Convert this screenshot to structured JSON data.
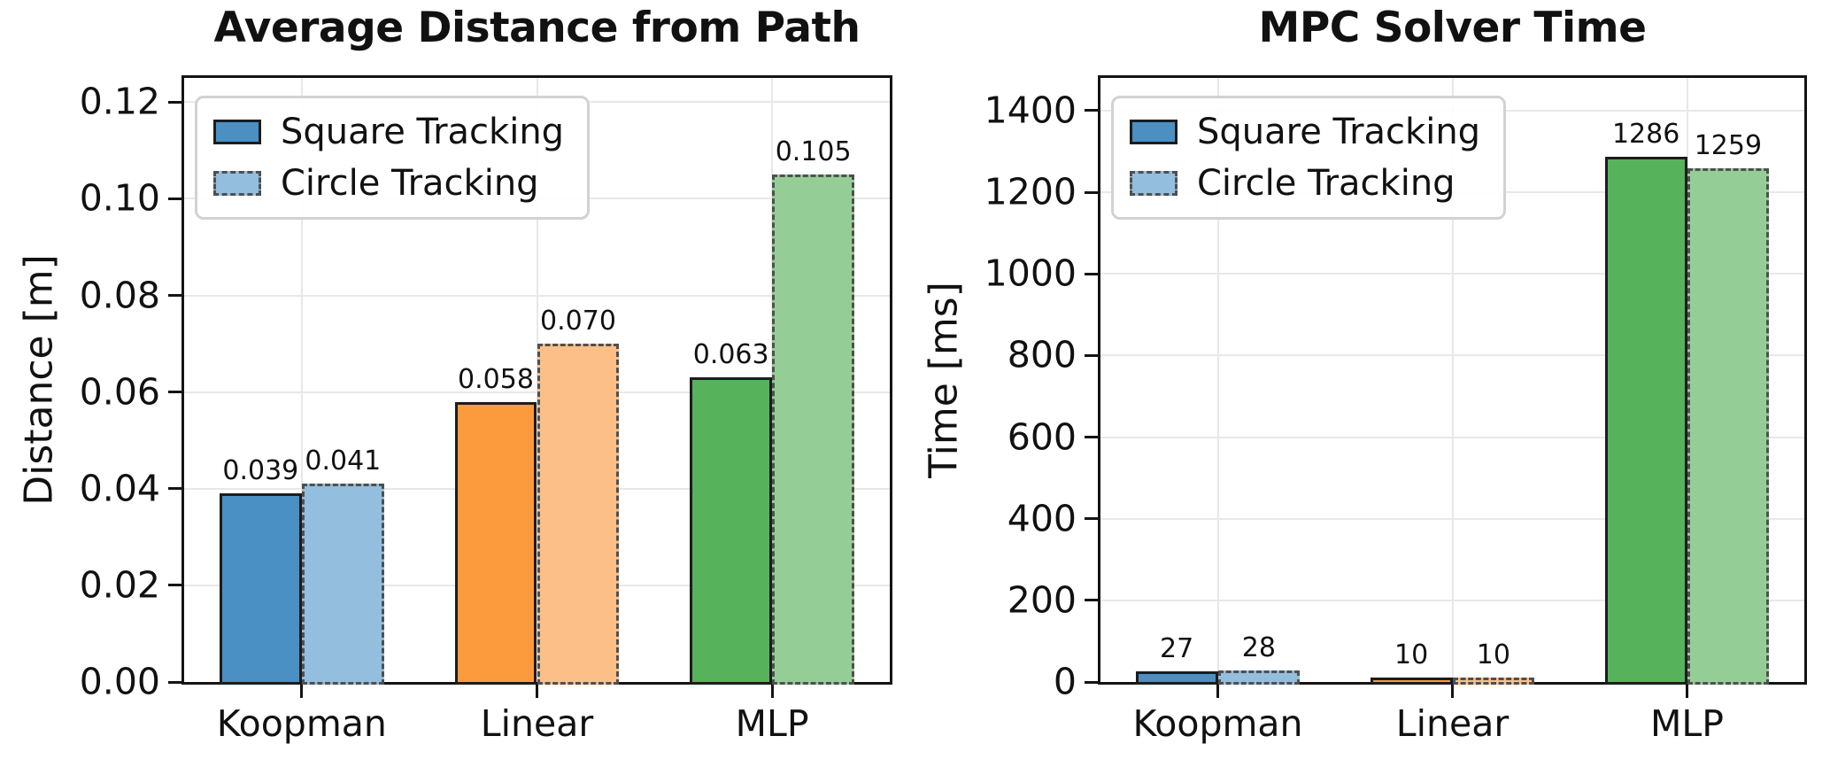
{
  "figure": {
    "background": "#ffffff"
  },
  "colors": {
    "solid": [
      "#4a90c4",
      "#fc9a3e",
      "#56b25b"
    ],
    "light": [
      "#94bedd",
      "#fdbf88",
      "#95cd96"
    ],
    "solid_edge": "#1c1c1c",
    "dashed_edge": "#4f4f4f",
    "grid": "#e8e8e8",
    "spine": "#141414"
  },
  "chart_data": [
    {
      "type": "bar",
      "title": "Average Distance from Path",
      "xlabel": "",
      "ylabel": "Distance [m]",
      "categories": [
        "Koopman",
        "Linear",
        "MLP"
      ],
      "series": [
        {
          "name": "Square Tracking",
          "style": "solid",
          "values": [
            0.039,
            0.058,
            0.063
          ],
          "labels": [
            "0.039",
            "0.058",
            "0.063"
          ]
        },
        {
          "name": "Circle Tracking",
          "style": "dashed",
          "values": [
            0.041,
            0.07,
            0.105
          ],
          "labels": [
            "0.041",
            "0.070",
            "0.105"
          ]
        }
      ],
      "ylim": [
        0,
        0.125
      ],
      "yticks": {
        "values": [
          0,
          0.02,
          0.04,
          0.06,
          0.08,
          0.1,
          0.12
        ],
        "labels": [
          "0.00",
          "0.02",
          "0.04",
          "0.06",
          "0.08",
          "0.10",
          "0.12"
        ]
      },
      "grid": true,
      "legend_position": "upper-left"
    },
    {
      "type": "bar",
      "title": "MPC Solver Time",
      "xlabel": "",
      "ylabel": "Time [ms]",
      "categories": [
        "Koopman",
        "Linear",
        "MLP"
      ],
      "series": [
        {
          "name": "Square Tracking",
          "style": "solid",
          "values": [
            27,
            10,
            1286
          ],
          "labels": [
            "27",
            "10",
            "1286"
          ]
        },
        {
          "name": "Circle Tracking",
          "style": "dashed",
          "values": [
            28,
            10,
            1259
          ],
          "labels": [
            "28",
            "10",
            "1259"
          ]
        }
      ],
      "ylim": [
        0,
        1480
      ],
      "yticks": {
        "values": [
          0,
          200,
          400,
          600,
          800,
          1000,
          1200,
          1400
        ],
        "labels": [
          "0",
          "200",
          "400",
          "600",
          "800",
          "1000",
          "1200",
          "1400"
        ]
      },
      "grid": true,
      "legend_position": "upper-left"
    }
  ]
}
